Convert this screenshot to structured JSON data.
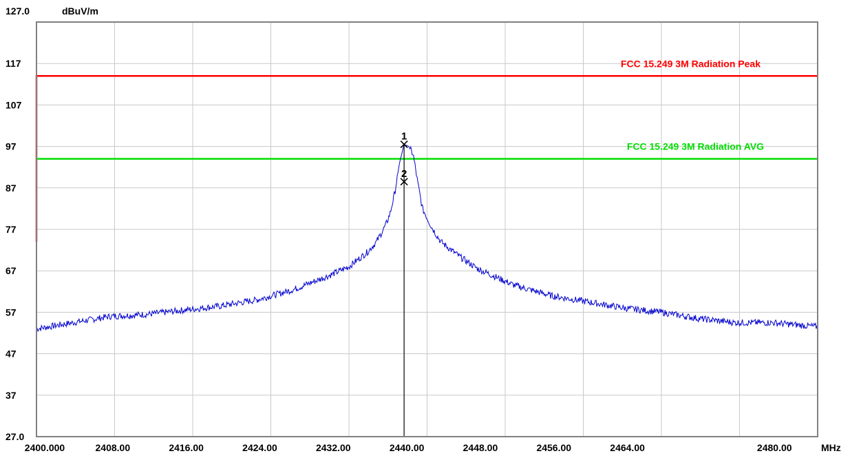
{
  "chart_data": {
    "type": "line",
    "title": "",
    "ylabel_top": "127.0",
    "yunit": "dBuV/m",
    "xunit": "MHz",
    "xlim": [
      2400,
      2485
    ],
    "ylim": [
      27,
      127
    ],
    "grid": true,
    "x_tick_labels": [
      {
        "value": 2400,
        "label": "2400.000"
      },
      {
        "value": 2408,
        "label": "2408.00"
      },
      {
        "value": 2416,
        "label": "2416.00"
      },
      {
        "value": 2424,
        "label": "2424.00"
      },
      {
        "value": 2432,
        "label": "2432.00"
      },
      {
        "value": 2440,
        "label": "2440.00"
      },
      {
        "value": 2448,
        "label": "2448.00"
      },
      {
        "value": 2456,
        "label": "2456.00"
      },
      {
        "value": 2464,
        "label": "2464.00"
      },
      {
        "value": 2480,
        "label": "2480.00"
      }
    ],
    "x_grid": [
      2400,
      2408.5,
      2417,
      2425.5,
      2434,
      2442.5,
      2451,
      2459.5,
      2468,
      2476.5,
      2485
    ],
    "y_tick_labels": [
      {
        "value": 117,
        "label": "117"
      },
      {
        "value": 107,
        "label": "107"
      },
      {
        "value": 97,
        "label": "97"
      },
      {
        "value": 87,
        "label": "87"
      },
      {
        "value": 77,
        "label": "77"
      },
      {
        "value": 67,
        "label": "67"
      },
      {
        "value": 57,
        "label": "57"
      },
      {
        "value": 47,
        "label": "47"
      },
      {
        "value": 37,
        "label": "37"
      },
      {
        "value": 27,
        "label": "27.0"
      }
    ],
    "limit_lines": [
      {
        "name": "FCC 15.249 3M Radiation Peak",
        "y": 114,
        "color": "#ff0000",
        "step_from_y": 74
      },
      {
        "name": "FCC 15.249 3M Radiation AVG",
        "y": 94,
        "color": "#00dd00"
      }
    ],
    "series": [
      {
        "color": "#0000cc",
        "x": [
          2400,
          2404,
          2408,
          2412,
          2416,
          2420,
          2424,
          2428,
          2432,
          2434,
          2436,
          2437,
          2438,
          2438.5,
          2439,
          2439.5,
          2440,
          2440.5,
          2441,
          2441.5,
          2442,
          2443,
          2444,
          2446,
          2448,
          2452,
          2456,
          2460,
          2464,
          2468,
          2472,
          2476,
          2480,
          2485
        ],
        "y": [
          53,
          54.5,
          56,
          56.5,
          57.5,
          58.5,
          60,
          62.5,
          66,
          68,
          71.5,
          74,
          78,
          81,
          86,
          93,
          97.5,
          97,
          95,
          88,
          82,
          77.5,
          74,
          70.5,
          67.5,
          63.5,
          61,
          59.5,
          58,
          57,
          55.5,
          54.5,
          54.5,
          53.5
        ]
      }
    ],
    "markers": [
      {
        "label": "1",
        "x": 2440,
        "y": 97.5
      },
      {
        "label": "2",
        "x": 2440,
        "y": 88.5
      }
    ],
    "marker_line_x": 2440
  }
}
